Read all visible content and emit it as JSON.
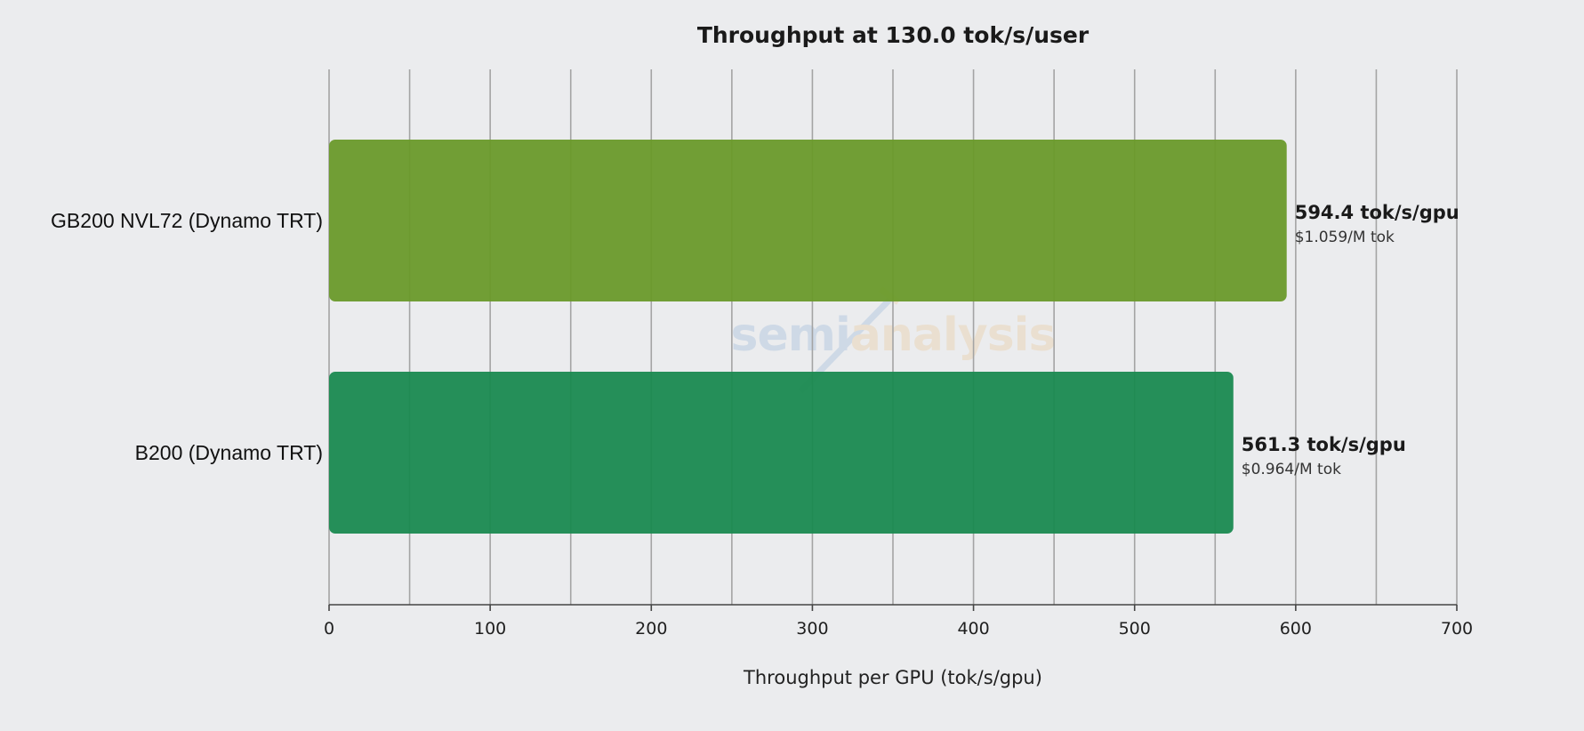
{
  "chart_data": {
    "type": "bar",
    "orientation": "horizontal",
    "title": "Throughput at 130.0 tok/s/user",
    "xlabel": "Throughput per GPU (tok/s/gpu)",
    "ylabel": "",
    "xlim": [
      0,
      700
    ],
    "xticks": [
      0,
      100,
      200,
      300,
      400,
      500,
      600,
      700
    ],
    "grid": true,
    "categories": [
      "GB200 NVL72 (Dynamo TRT)",
      "B200 (Dynamo TRT)"
    ],
    "values": [
      594.4,
      561.3
    ],
    "value_labels": [
      "594.4 tok/s/gpu",
      "561.3 tok/s/gpu"
    ],
    "cost_labels": [
      "$1.059/M tok",
      "$0.964/M tok"
    ],
    "colors": [
      "#6a9a2a",
      "#1a8a50"
    ]
  },
  "watermark": {
    "left": "semi",
    "right": "analysis"
  }
}
